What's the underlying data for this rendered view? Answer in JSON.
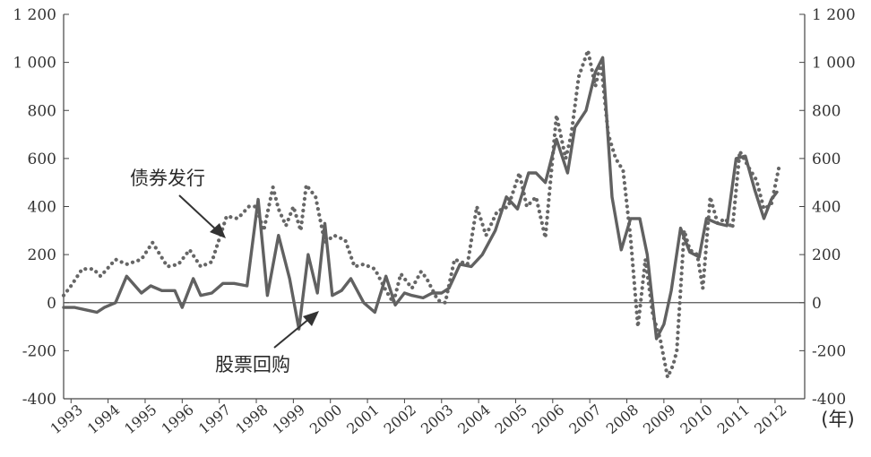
{
  "chart_data": {
    "type": "line",
    "xlabel": "(年)",
    "ylim": [
      -400,
      1200
    ],
    "yticks": [
      "-400",
      "-200",
      "0",
      "200",
      "400",
      "600",
      "800",
      "1 000",
      "1 200"
    ],
    "yticks_right": [
      "-400",
      "-200",
      "0",
      "200",
      "400",
      "600",
      "800",
      "1 000",
      "1 200"
    ],
    "xlim": [
      1992.8,
      2012.8
    ],
    "years": [
      "1993",
      "1994",
      "1995",
      "1996",
      "1997",
      "1998",
      "1999",
      "2000",
      "2001",
      "2002",
      "2003",
      "2004",
      "2005",
      "2006",
      "2007",
      "2008",
      "2009",
      "2010",
      "2011",
      "2012"
    ],
    "grid": false,
    "zero_line": true,
    "annotations": [
      {
        "text": "债券发行",
        "series": "bond"
      },
      {
        "text": "股票回购",
        "series": "buyback"
      }
    ],
    "series": [
      {
        "key": "bond",
        "style": "dotted",
        "x": [
          1992.8,
          1993.0,
          1993.3,
          1993.6,
          1993.8,
          1994.2,
          1994.5,
          1994.9,
          1995.2,
          1995.6,
          1995.9,
          1996.2,
          1996.5,
          1996.8,
          1997.2,
          1997.5,
          1997.8,
          1998.0,
          1998.2,
          1998.45,
          1998.6,
          1998.8,
          1999.0,
          1999.2,
          1999.35,
          1999.6,
          1999.85,
          2000.1,
          2000.4,
          2000.65,
          2000.9,
          2001.2,
          2001.5,
          2001.7,
          2001.9,
          2002.2,
          2002.45,
          2002.6,
          2002.9,
          2003.1,
          2003.35,
          2003.7,
          2003.95,
          2004.2,
          2004.5,
          2004.8,
          2005.1,
          2005.3,
          2005.55,
          2005.8,
          2006.1,
          2006.35,
          2006.5,
          2006.7,
          2006.95,
          2007.15,
          2007.3,
          2007.5,
          2007.7,
          2007.9,
          2008.1,
          2008.3,
          2008.5,
          2008.7,
          2008.9,
          2009.1,
          2009.25,
          2009.35,
          2009.55,
          2009.7,
          2009.9,
          2010.05,
          2010.25,
          2010.45,
          2010.65,
          2010.85,
          2011.05,
          2011.3,
          2011.5,
          2011.7,
          2011.9,
          2012.1
        ],
        "y": [
          30,
          70,
          140,
          140,
          110,
          180,
          160,
          180,
          250,
          150,
          160,
          220,
          150,
          170,
          360,
          350,
          400,
          400,
          300,
          480,
          390,
          320,
          400,
          300,
          490,
          440,
          250,
          280,
          260,
          150,
          160,
          140,
          50,
          0,
          120,
          60,
          130,
          100,
          10,
          0,
          180,
          160,
          400,
          280,
          380,
          400,
          540,
          400,
          440,
          270,
          780,
          600,
          700,
          940,
          1050,
          900,
          1000,
          700,
          600,
          550,
          270,
          -100,
          180,
          -50,
          -150,
          -310,
          -260,
          -200,
          300,
          220,
          200,
          60,
          440,
          330,
          350,
          310,
          630,
          560,
          510,
          390,
          410,
          560
        ]
      },
      {
        "key": "buyback",
        "style": "solid",
        "x": [
          1992.8,
          1993.1,
          1993.4,
          1993.7,
          1993.9,
          1994.2,
          1994.5,
          1994.9,
          1995.15,
          1995.45,
          1995.8,
          1996.0,
          1996.3,
          1996.5,
          1996.8,
          1997.1,
          1997.4,
          1997.75,
          1998.05,
          1998.3,
          1998.6,
          1998.9,
          1999.15,
          1999.4,
          1999.65,
          1999.85,
          2000.05,
          2000.3,
          2000.55,
          2000.9,
          2001.2,
          2001.5,
          2001.75,
          2002.0,
          2002.2,
          2002.5,
          2002.75,
          2003.0,
          2003.2,
          2003.5,
          2003.8,
          2004.1,
          2004.45,
          2004.75,
          2005.05,
          2005.35,
          2005.55,
          2005.8,
          2006.1,
          2006.4,
          2006.6,
          2006.9,
          2007.15,
          2007.35,
          2007.6,
          2007.85,
          2008.1,
          2008.35,
          2008.55,
          2008.8,
          2009.0,
          2009.2,
          2009.45,
          2009.7,
          2009.95,
          2010.15,
          2010.45,
          2010.7,
          2010.95,
          2011.2,
          2011.45,
          2011.7,
          2011.9,
          2012.05
        ],
        "y": [
          -20,
          -20,
          -30,
          -40,
          -20,
          0,
          110,
          40,
          70,
          50,
          50,
          -20,
          100,
          30,
          40,
          80,
          80,
          70,
          430,
          30,
          280,
          100,
          -110,
          200,
          40,
          330,
          30,
          50,
          100,
          0,
          -40,
          110,
          -10,
          40,
          30,
          20,
          40,
          40,
          60,
          160,
          150,
          200,
          300,
          440,
          390,
          540,
          540,
          500,
          680,
          540,
          730,
          800,
          960,
          1020,
          440,
          220,
          350,
          350,
          200,
          -150,
          -90,
          50,
          310,
          210,
          190,
          350,
          330,
          320,
          600,
          610,
          470,
          350,
          430,
          460
        ]
      }
    ]
  }
}
